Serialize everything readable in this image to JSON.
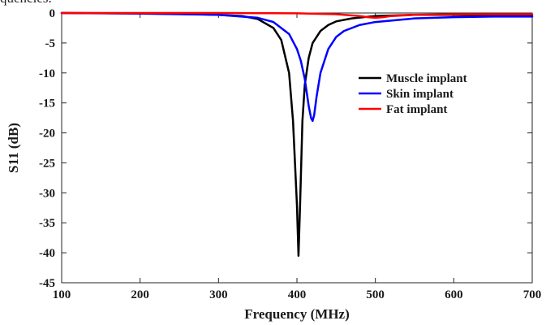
{
  "top_text": "quencies.",
  "chart_data": {
    "type": "line",
    "title": "",
    "xlabel": "Frequency (MHz)",
    "ylabel": "S11 (dB)",
    "xlim": [
      100,
      700
    ],
    "ylim": [
      -45,
      0
    ],
    "x_ticks": [
      100,
      200,
      300,
      400,
      500,
      600,
      700
    ],
    "y_ticks": [
      0,
      -5,
      -10,
      -15,
      -20,
      -25,
      -30,
      -35,
      -40,
      -45
    ],
    "grid": false,
    "legend_position": "right",
    "series": [
      {
        "name": "Muscle implant",
        "color": "#000000",
        "x": [
          100,
          200,
          300,
          330,
          350,
          370,
          380,
          390,
          395,
          400,
          402,
          404,
          407,
          410,
          415,
          420,
          430,
          440,
          450,
          470,
          500,
          550,
          600,
          650,
          700
        ],
        "y": [
          0,
          -0.05,
          -0.3,
          -0.5,
          -1.0,
          -2.5,
          -4.5,
          -10.0,
          -18.0,
          -32.0,
          -40.5,
          -32.0,
          -18.0,
          -12.0,
          -7.5,
          -5.0,
          -3.0,
          -2.0,
          -1.4,
          -0.9,
          -0.5,
          -0.3,
          -0.3,
          -0.4,
          -0.5
        ]
      },
      {
        "name": "Skin implant",
        "color": "#0000ff",
        "x": [
          100,
          200,
          300,
          350,
          370,
          390,
          400,
          405,
          410,
          415,
          418,
          420,
          422,
          425,
          430,
          440,
          450,
          460,
          480,
          500,
          550,
          600,
          650,
          700
        ],
        "y": [
          0,
          -0.1,
          -0.3,
          -0.8,
          -1.5,
          -3.5,
          -6.0,
          -8.0,
          -11.0,
          -15.5,
          -17.5,
          -18.0,
          -17.0,
          -14.0,
          -10.0,
          -6.0,
          -4.0,
          -3.0,
          -2.0,
          -1.5,
          -0.9,
          -0.7,
          -0.6,
          -0.6
        ]
      },
      {
        "name": "Fat implant",
        "color": "#ff0000",
        "x": [
          100,
          200,
          300,
          400,
          450,
          480,
          490,
          500,
          510,
          520,
          550,
          600,
          700
        ],
        "y": [
          0,
          0,
          0,
          -0.05,
          -0.2,
          -0.5,
          -0.7,
          -0.8,
          -0.7,
          -0.5,
          -0.3,
          -0.2,
          -0.2
        ]
      }
    ]
  }
}
